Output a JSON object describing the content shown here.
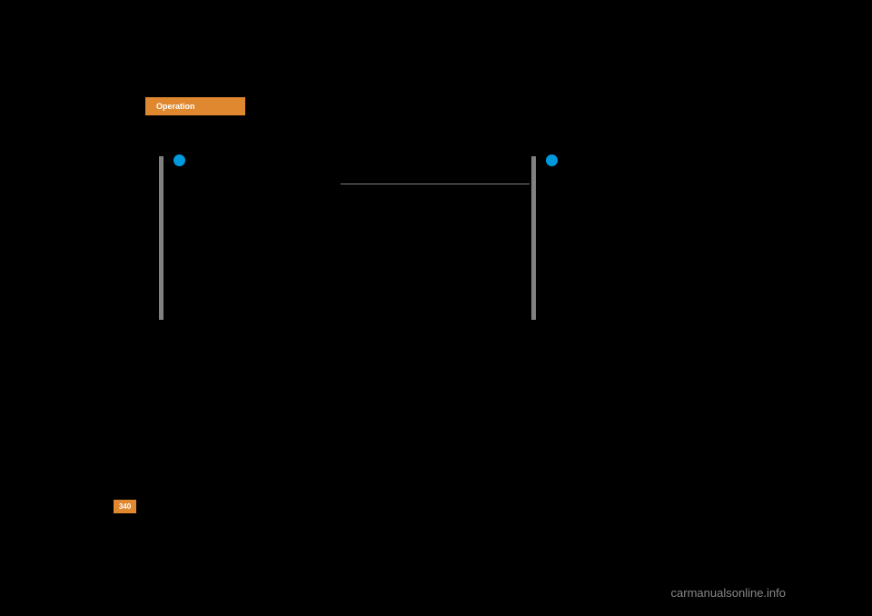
{
  "header": {
    "tab_label": "Operation",
    "tab_bg_color": "#e08830",
    "tab_text_color": "#ffffff"
  },
  "bars": {
    "left_bar_color": "#808080",
    "right_bar_color": "#808080",
    "horizontal_line_color": "#808080"
  },
  "dots": {
    "left_dot_color": "#0099dd",
    "right_dot_color": "#0099dd"
  },
  "page_number": {
    "value": "340",
    "bg_color": "#e08830",
    "text_color": "#ffffff"
  },
  "watermark": {
    "text": "carmanualsonline.info",
    "color": "#888888"
  },
  "background_color": "#000000"
}
